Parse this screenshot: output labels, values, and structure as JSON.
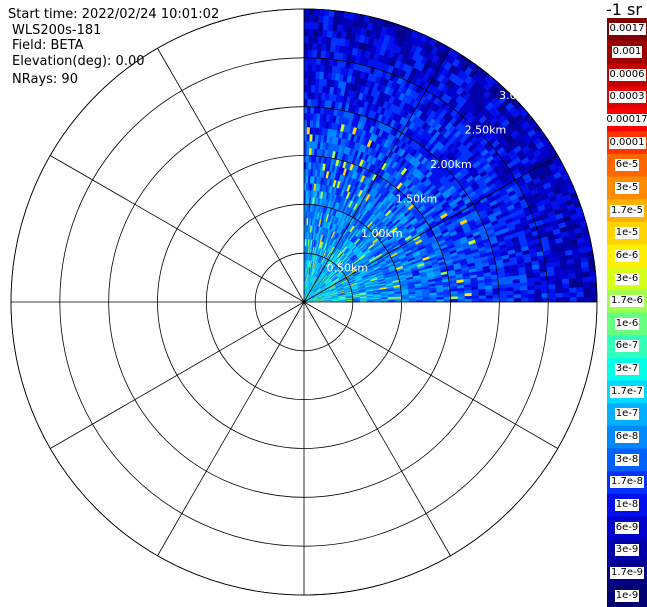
{
  "header": {
    "start_time": "Start time: 2022/02/24 10:01:02",
    "instrument": "WLS200s-181",
    "field": "Field: BETA",
    "elevation": "Elevation(deg): 0.00",
    "nrays": "NRays: 90"
  },
  "chart_data": {
    "type": "heatmap",
    "projection": "polar-ppi",
    "azimuth_range_deg": [
      0,
      90
    ],
    "range_rings_km": [
      0.5,
      1.0,
      1.5,
      2.0,
      2.5,
      3.0
    ],
    "ring_labels": [
      "0.50km",
      "1.00km",
      "1.50km",
      "2.00km",
      "2.50km",
      "3.0"
    ],
    "max_range_km": 3.0,
    "spoke_step_deg": 30,
    "n_rays": 90,
    "colorbar": {
      "title": "-1 sr",
      "labels": [
        "0.0017",
        "0.001",
        "0.0006",
        "0.0003",
        "0.00017",
        "0.0001",
        "6e-5",
        "3e-5",
        "1.7e-5",
        "1e-5",
        "6e-6",
        "3e-6",
        "1.7e-6",
        "1e-6",
        "6e-7",
        "3e-7",
        "1.7e-7",
        "1e-7",
        "6e-8",
        "3e-8",
        "1.7e-8",
        "1e-8",
        "6e-9",
        "3e-9",
        "1.7e-9",
        "1e-9"
      ],
      "colors": [
        "#7f0000",
        "#9e0000",
        "#c10000",
        "#e00000",
        "#ff0000",
        "#ff3300",
        "#ff6600",
        "#ff8c00",
        "#ffb000",
        "#ffd400",
        "#ffee00",
        "#d6ff1a",
        "#9eff4d",
        "#66ff80",
        "#33ffb8",
        "#00ffe6",
        "#00d9ff",
        "#00b0ff",
        "#0088ff",
        "#0060ff",
        "#0033ff",
        "#0010ee",
        "#0000cc",
        "#0000a8",
        "#00008c",
        "#000070"
      ]
    }
  }
}
